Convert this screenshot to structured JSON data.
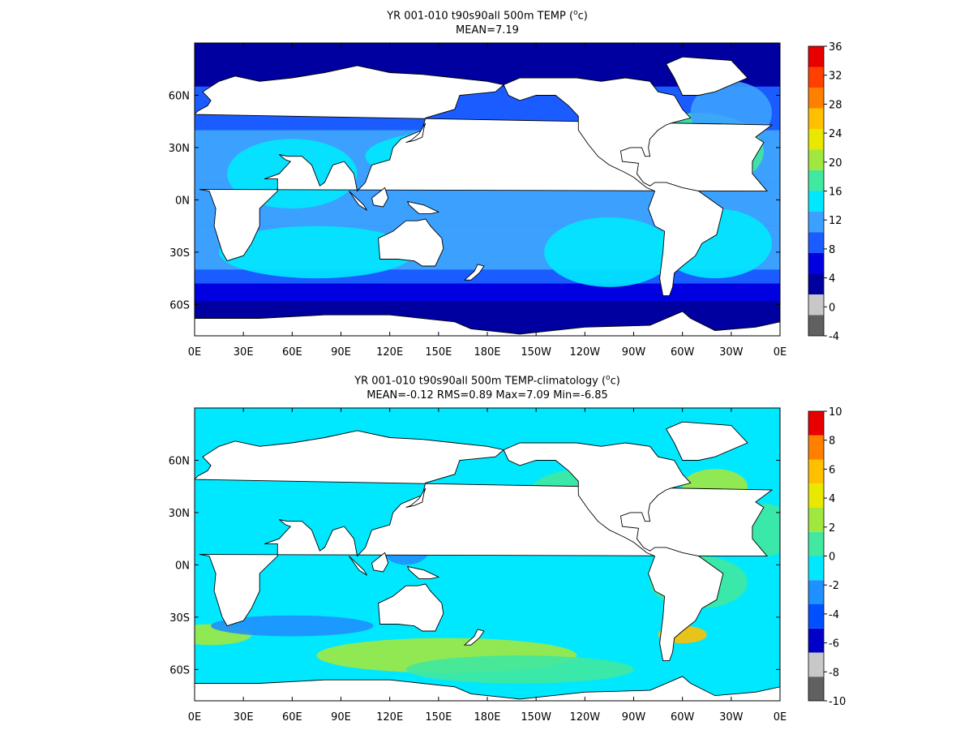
{
  "chart_data": [
    {
      "type": "heatmap",
      "title": "YR 001-010 t90s90all 500m TEMP",
      "title_unit_base": "o",
      "title_unit_tail": "c",
      "subtitle": "MEAN=7.19",
      "x_tick_labels": [
        "0E",
        "30E",
        "60E",
        "90E",
        "120E",
        "150E",
        "180E",
        "150W",
        "120W",
        "90W",
        "60W",
        "30W",
        "0E"
      ],
      "y_tick_labels": [
        "60N",
        "30N",
        "0N",
        "30S",
        "60S"
      ],
      "y_tick_values": [
        60,
        30,
        0,
        -30,
        -60
      ],
      "xlim": [
        0,
        360
      ],
      "ylim": [
        -78,
        90
      ],
      "colorbar": {
        "levels": [
          -4,
          0,
          4,
          8,
          12,
          16,
          20,
          24,
          28,
          32,
          36
        ],
        "labels": [
          "36",
          "32",
          "28",
          "24",
          "20",
          "16",
          "12",
          "8",
          "4",
          "0",
          "-4"
        ],
        "colors": [
          "#606060",
          "#c8c8c8",
          "#0000a0",
          "#0000e0",
          "#1a5cff",
          "#3ca0ff",
          "#00e8ff",
          "#40e8a0",
          "#a0e840",
          "#e8e800",
          "#ffc000",
          "#ff8000",
          "#ff4000",
          "#e80000"
        ]
      }
    },
    {
      "type": "heatmap",
      "title": "YR 001-010 t90s90all 500m TEMP-climatology",
      "title_unit_base": "o",
      "title_unit_tail": "c",
      "subtitle": "MEAN=-0.12   RMS=0.89   Max=7.09   Min=-6.85",
      "x_tick_labels": [
        "0E",
        "30E",
        "60E",
        "90E",
        "120E",
        "150E",
        "180E",
        "150W",
        "120W",
        "90W",
        "60W",
        "30W",
        "0E"
      ],
      "y_tick_labels": [
        "60N",
        "30N",
        "0N",
        "30S",
        "60S"
      ],
      "y_tick_values": [
        60,
        30,
        0,
        -30,
        -60
      ],
      "xlim": [
        0,
        360
      ],
      "ylim": [
        -78,
        90
      ],
      "colorbar": {
        "levels": [
          -10,
          -8,
          -6,
          -4,
          -2,
          0,
          2,
          4,
          6,
          8,
          10
        ],
        "labels": [
          "10",
          "8",
          "6",
          "4",
          "2",
          "0",
          "-2",
          "-4",
          "-6",
          "-8",
          "-10"
        ],
        "colors": [
          "#606060",
          "#c8c8c8",
          "#0000c8",
          "#0050ff",
          "#1e90ff",
          "#00e8ff",
          "#40e8a0",
          "#a0e840",
          "#e8e800",
          "#ffc000",
          "#ff8000",
          "#e80000"
        ]
      }
    }
  ]
}
